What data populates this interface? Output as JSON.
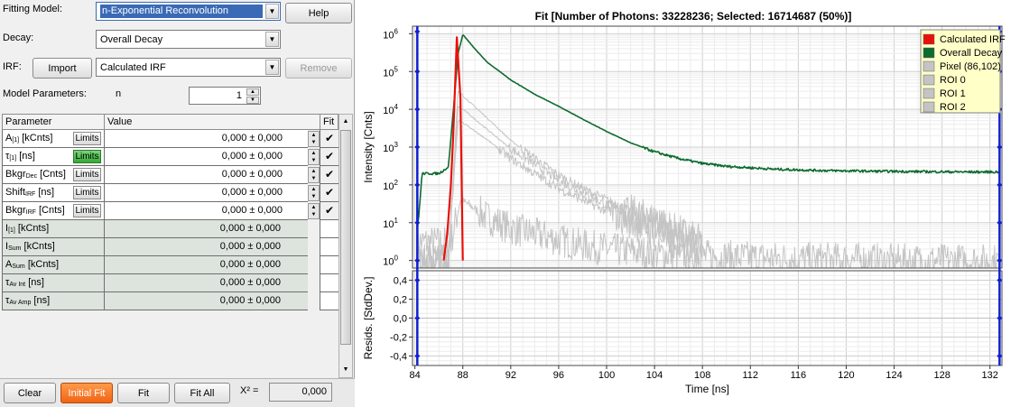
{
  "left_panel": {
    "fitting_model_label": "Fitting Model:",
    "fitting_model_value": "n-Exponential Reconvolution",
    "help_button": "Help",
    "decay_label": "Decay:",
    "decay_value": "Overall Decay",
    "irf_label": "IRF:",
    "import_button": "Import",
    "irf_value": "Calculated IRF",
    "remove_button": "Remove",
    "model_params_label": "Model Parameters:",
    "n_label": "n",
    "n_value": "1",
    "table_headers": {
      "parameter": "Parameter",
      "value": "Value",
      "fit": "Fit"
    },
    "limits_label": "Limits",
    "parameters": [
      {
        "name": "A",
        "sub": "[1]",
        "unit": "[kCnts]",
        "value": "0,000 ± 0,000",
        "editable": true,
        "limits_active": false,
        "fit": "✔"
      },
      {
        "name": "τ",
        "sub": "[1]",
        "unit": "[ns]",
        "value": "0,000 ± 0,000",
        "editable": true,
        "limits_active": true,
        "fit": "✔"
      },
      {
        "name": "Bkgr",
        "sub": "Dec",
        "unit": "[Cnts]",
        "value": "0,000 ± 0,000",
        "editable": true,
        "limits_active": false,
        "fit": "✔"
      },
      {
        "name": "Shift",
        "sub": "IRF",
        "unit": "[ns]",
        "value": "0,000 ± 0,000",
        "editable": true,
        "limits_active": false,
        "fit": "✔"
      },
      {
        "name": "Bkgr",
        "sub": "IRF",
        "unit": "[Cnts]",
        "value": "0,000 ± 0,000",
        "editable": true,
        "limits_active": false,
        "fit": "✔"
      },
      {
        "name": "I",
        "sub": "[1]",
        "unit": "[kCnts]",
        "value": "0,000 ± 0,000",
        "editable": false
      },
      {
        "name": "I",
        "sub": "Sum",
        "unit": "[kCnts]",
        "value": "0,000 ± 0,000",
        "editable": false
      },
      {
        "name": "A",
        "sub": "Sum",
        "unit": "[kCnts]",
        "value": "0,000 ± 0,000",
        "editable": false
      },
      {
        "name": "τ",
        "sub": "Av Int",
        "unit": "[ns]",
        "value": "0,000 ± 0,000",
        "editable": false
      },
      {
        "name": "τ",
        "sub": "Av Amp",
        "unit": "[ns]",
        "value": "0,000 ± 0,000",
        "editable": false
      }
    ],
    "buttons": {
      "clear": "Clear",
      "initial_fit": "Initial Fit",
      "fit": "Fit",
      "fit_all": "Fit All"
    },
    "chi_label": "X² =",
    "chi_value": "0,000"
  },
  "colors": {
    "calculated_irf": "#e8100a",
    "overall_decay": "#0d6b2f",
    "grey_series": "#c4c4c4",
    "cursor_blue": "#1020d0",
    "initial_fit_button": "#f06414",
    "limits_active": "#34a934"
  },
  "chart_data": {
    "type": "line",
    "title": "Fit [Number of Photons: 33228236; Selected: 16714687 (50%)]",
    "xlabel": "Time [ns]",
    "ylabel": "Intensity [Cnts]",
    "resid_ylabel": "Resids. [StdDev.]",
    "x_ticks": [
      "84",
      "88",
      "92",
      "96",
      "100",
      "104",
      "108",
      "112",
      "116",
      "120",
      "124",
      "128",
      "132"
    ],
    "x_tick_values": [
      84,
      88,
      92,
      96,
      100,
      104,
      108,
      112,
      116,
      120,
      124,
      128,
      132
    ],
    "xlim": [
      83.8,
      133.0
    ],
    "y_scale": "log",
    "ylim_log10": [
      -0.2,
      6.2
    ],
    "y_tick_labels": [
      {
        "base": "10",
        "exp": "0",
        "log": 0
      },
      {
        "base": "10",
        "exp": "1",
        "log": 1
      },
      {
        "base": "10",
        "exp": "2",
        "log": 2
      },
      {
        "base": "10",
        "exp": "3",
        "log": 3
      },
      {
        "base": "10",
        "exp": "4",
        "log": 4
      },
      {
        "base": "10",
        "exp": "5",
        "log": 5
      },
      {
        "base": "10",
        "exp": "6",
        "log": 6
      }
    ],
    "resid_ylim": [
      -0.5,
      0.5
    ],
    "resid_ticks": [
      "0,4",
      "0,2",
      "0,0",
      "-0,2",
      "-0,4"
    ],
    "resid_tick_values": [
      0.4,
      0.2,
      0.0,
      -0.2,
      -0.4
    ],
    "grid": true,
    "legend_position": "top-right",
    "cursor_x": [
      84.2,
      132.8
    ],
    "series": [
      {
        "name": "Calculated IRF",
        "color": "#e8100a",
        "x": [
          86.4,
          86.7,
          87.0,
          87.2,
          87.5,
          87.8,
          88.0
        ],
        "y": [
          1,
          5,
          100,
          2000,
          800000,
          20000,
          1
        ]
      },
      {
        "name": "Overall Decay",
        "color": "#0d6b2f",
        "x": [
          84.2,
          84.6,
          86.0,
          86.8,
          87.3,
          87.6,
          88.0,
          89,
          90,
          92,
          94,
          96,
          98,
          100,
          102,
          104,
          106,
          108,
          110,
          114,
          118,
          122,
          126,
          130,
          132.8
        ],
        "y": [
          5,
          200,
          200,
          300,
          20000,
          300000,
          950000,
          400000,
          180000,
          60000,
          25000,
          12000,
          5500,
          2600,
          1300,
          750,
          500,
          370,
          310,
          260,
          240,
          230,
          225,
          220,
          220
        ]
      },
      {
        "name": "Pixel (86,102)",
        "color": "#c4c4c4",
        "x": [
          84.2,
          87.0,
          87.8,
          88.5,
          90,
          92,
          94,
          96,
          98,
          100,
          104,
          108,
          112,
          116,
          120,
          124,
          128,
          132.8
        ],
        "y": [
          3,
          3,
          40,
          30,
          14,
          7,
          5,
          3.5,
          2.5,
          2,
          1.5,
          1.3,
          1.2,
          1.1,
          1.1,
          1.0,
          1.0,
          1.0
        ]
      },
      {
        "name": "ROI 0",
        "color": "#c4c4c4",
        "x": [
          84.2,
          86.8,
          87.6,
          88.2,
          90,
          92,
          94,
          96,
          98,
          100,
          102,
          104,
          106,
          108
        ],
        "y": [
          1,
          1,
          30000,
          20000,
          6000,
          1500,
          500,
          180,
          80,
          40,
          20,
          12,
          6,
          3
        ]
      },
      {
        "name": "ROI 1",
        "color": "#c4c4c4",
        "x": [
          84.2,
          86.8,
          87.6,
          88.2,
          90,
          92,
          94,
          96,
          98,
          100,
          102,
          104,
          106,
          108
        ],
        "y": [
          1,
          1,
          12000,
          9000,
          3000,
          900,
          350,
          130,
          60,
          30,
          16,
          9,
          5,
          2
        ]
      },
      {
        "name": "ROI 2",
        "color": "#c4c4c4",
        "x": [
          84.2,
          86.8,
          87.6,
          88.2,
          90,
          92,
          94,
          96,
          98,
          100,
          102,
          104,
          106,
          108
        ],
        "y": [
          1,
          1,
          5000,
          4000,
          1600,
          500,
          200,
          80,
          40,
          20,
          10,
          6,
          3,
          2
        ]
      }
    ]
  }
}
